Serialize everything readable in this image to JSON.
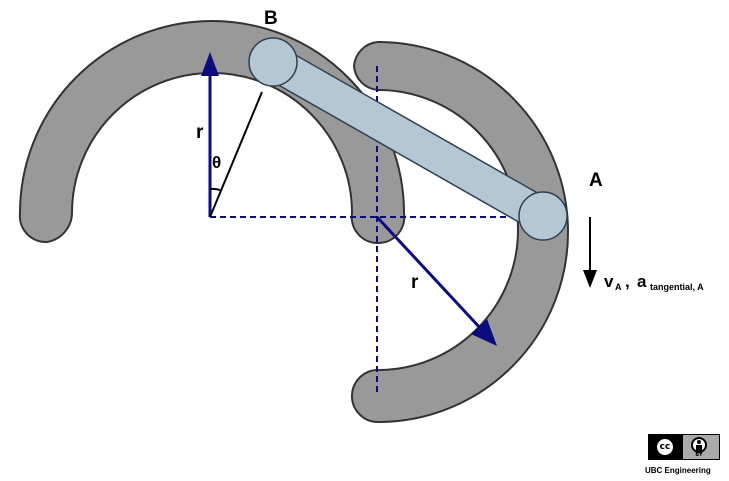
{
  "labels": {
    "point_b": "B",
    "point_a": "A",
    "radius_left": "r",
    "radius_right": "r",
    "angle": "θ",
    "velocity_main": "v",
    "velocity_sub": "A",
    "separator": ",",
    "accel_main": "a",
    "accel_sub": "tangential, A"
  },
  "license": {
    "cc_text": "cc",
    "by_text": "BY",
    "credit": "UBC Engineering"
  },
  "colors": {
    "track_fill": "#999999",
    "track_stroke": "#333333",
    "link_fill": "#b4c7d4",
    "link_stroke": "#2f3f4f",
    "vector_navy": "#0c0c7c",
    "background": "#ffffff"
  }
}
